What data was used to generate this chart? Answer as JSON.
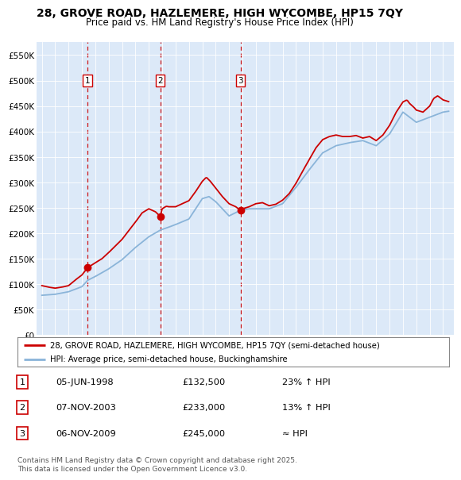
{
  "title_line1": "28, GROVE ROAD, HAZLEMERE, HIGH WYCOMBE, HP15 7QY",
  "title_line2": "Price paid vs. HM Land Registry's House Price Index (HPI)",
  "title_fontsize": 10,
  "subtitle_fontsize": 9,
  "background_color": "#dce9f8",
  "plot_bg_color": "#dce9f8",
  "fig_bg_color": "#ffffff",
  "hpi_color": "#8ab4d9",
  "price_color": "#cc0000",
  "vline_color": "#cc0000",
  "marker_color": "#cc0000",
  "sales": [
    {
      "date_num": 1998.43,
      "price": 132500,
      "label": "1",
      "date_str": "05-JUN-1998",
      "hpi_pct": "23% ↑ HPI"
    },
    {
      "date_num": 2003.85,
      "price": 233000,
      "label": "2",
      "date_str": "07-NOV-2003",
      "hpi_pct": "13% ↑ HPI"
    },
    {
      "date_num": 2009.85,
      "price": 245000,
      "label": "3",
      "date_str": "06-NOV-2009",
      "hpi_pct": "≈ HPI"
    }
  ],
  "legend_line1": "28, GROVE ROAD, HAZLEMERE, HIGH WYCOMBE, HP15 7QY (semi-detached house)",
  "legend_line2": "HPI: Average price, semi-detached house, Buckinghamshire",
  "footer": "Contains HM Land Registry data © Crown copyright and database right 2025.\nThis data is licensed under the Open Government Licence v3.0.",
  "ylim": [
    0,
    575000
  ],
  "yticks": [
    0,
    50000,
    100000,
    150000,
    200000,
    250000,
    300000,
    350000,
    400000,
    450000,
    500000,
    550000
  ],
  "ytick_labels": [
    "£0",
    "£50K",
    "£100K",
    "£150K",
    "£200K",
    "£250K",
    "£300K",
    "£350K",
    "£400K",
    "£450K",
    "£500K",
    "£550K"
  ],
  "xlim_start": 1994.6,
  "xlim_end": 2025.8,
  "xticks": [
    1995,
    1996,
    1997,
    1998,
    1999,
    2000,
    2001,
    2002,
    2003,
    2004,
    2005,
    2006,
    2007,
    2008,
    2009,
    2010,
    2011,
    2012,
    2013,
    2014,
    2015,
    2016,
    2017,
    2018,
    2019,
    2020,
    2021,
    2022,
    2023,
    2024,
    2025
  ]
}
